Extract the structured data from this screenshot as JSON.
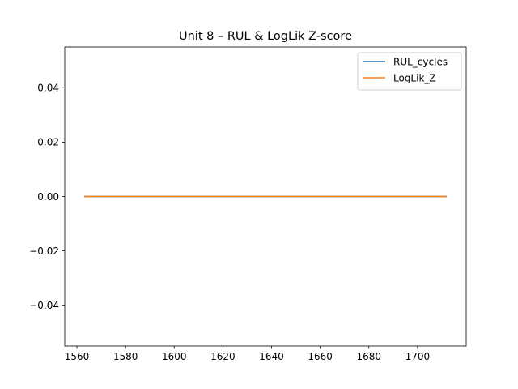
{
  "chart_data": {
    "type": "line",
    "title": "Unit 8  –  RUL & LogLik Z-score",
    "xlabel": "",
    "ylabel": "",
    "xlim": [
      1555,
      1720
    ],
    "ylim": [
      -0.055,
      0.055
    ],
    "xticks": [
      1560,
      1580,
      1600,
      1620,
      1640,
      1660,
      1680,
      1700
    ],
    "yticks": [
      0.04,
      0.02,
      0.0,
      -0.02,
      -0.04
    ],
    "xtick_labels": [
      "1560",
      "1580",
      "1600",
      "1620",
      "1640",
      "1660",
      "1680",
      "1700"
    ],
    "ytick_labels": [
      "0.04",
      "0.02",
      "0.00",
      "−0.02",
      "−0.04"
    ],
    "grid": false,
    "legend_position": "upper right",
    "series": [
      {
        "name": "RUL_cycles",
        "color": "#1f77b4",
        "x": [
          1563,
          1712
        ],
        "y": [
          0,
          0
        ]
      },
      {
        "name": "LogLik_Z",
        "color": "#ff7f0e",
        "x": [
          1563,
          1712
        ],
        "y": [
          0,
          0
        ]
      }
    ]
  }
}
